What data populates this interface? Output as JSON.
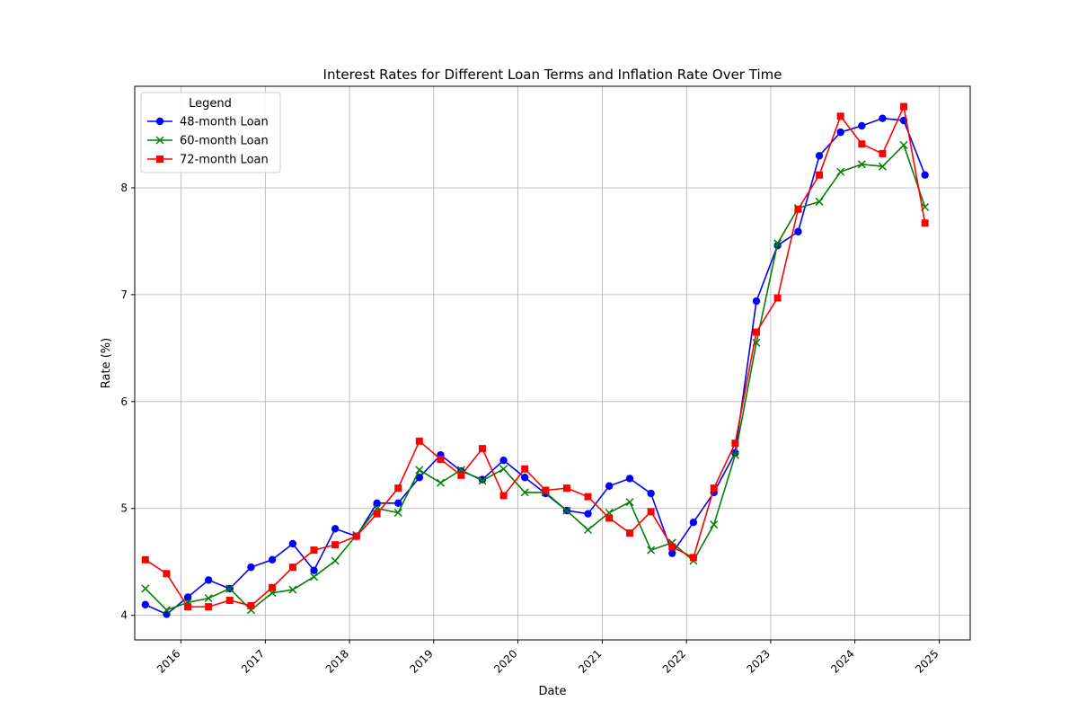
{
  "chart_data": {
    "type": "line",
    "title": "Interest Rates for Different Loan Terms and Inflation Rate Over Time",
    "xlabel": "Date",
    "ylabel": "Rate (%)",
    "x_ticks": [
      "2016",
      "2017",
      "2018",
      "2019",
      "2020",
      "2021",
      "2022",
      "2023",
      "2024",
      "2025"
    ],
    "y_ticks": [
      4,
      5,
      6,
      7,
      8
    ],
    "xlim": [
      "2015-06-15",
      "2025-05-15"
    ],
    "ylim": [
      3.77,
      8.95
    ],
    "grid": true,
    "legend": {
      "title": "Legend",
      "placement": "upper-left"
    },
    "x": [
      "2015-07-31",
      "2015-10-31",
      "2016-01-31",
      "2016-04-30",
      "2016-07-31",
      "2016-10-31",
      "2017-01-31",
      "2017-04-30",
      "2017-07-31",
      "2017-10-31",
      "2018-01-31",
      "2018-04-30",
      "2018-07-31",
      "2018-10-31",
      "2019-01-31",
      "2019-04-30",
      "2019-07-31",
      "2019-10-31",
      "2020-01-31",
      "2020-04-30",
      "2020-07-31",
      "2020-10-31",
      "2021-01-31",
      "2021-04-30",
      "2021-07-31",
      "2021-10-31",
      "2022-01-31",
      "2022-04-30",
      "2022-07-31",
      "2022-10-31",
      "2023-01-31",
      "2023-04-30",
      "2023-07-31",
      "2023-10-31",
      "2024-01-31",
      "2024-04-30",
      "2024-07-31",
      "2024-10-31"
    ],
    "series": [
      {
        "name": "48-month Loan",
        "color": "#0000ff",
        "marker": "circle",
        "values": [
          4.1,
          4.01,
          4.17,
          4.33,
          4.25,
          4.45,
          4.52,
          4.67,
          4.42,
          4.81,
          4.74,
          5.05,
          5.05,
          5.29,
          5.5,
          5.35,
          5.27,
          5.45,
          5.29,
          5.14,
          4.98,
          4.95,
          5.21,
          5.28,
          5.14,
          4.58,
          4.87,
          5.15,
          5.52,
          6.94,
          7.46,
          7.59,
          8.3,
          8.52,
          8.58,
          8.65,
          8.63,
          8.12
        ]
      },
      {
        "name": "60-month Loan",
        "color": "#008000",
        "marker": "x",
        "values": [
          4.25,
          4.05,
          4.12,
          4.16,
          4.25,
          4.05,
          4.21,
          4.24,
          4.36,
          4.51,
          4.75,
          5.0,
          4.96,
          5.36,
          5.24,
          5.36,
          5.26,
          5.37,
          5.15,
          5.15,
          4.98,
          4.8,
          4.96,
          5.06,
          4.61,
          4.68,
          4.51,
          4.85,
          5.5,
          6.55,
          7.48,
          7.81,
          7.87,
          8.15,
          8.22,
          8.2,
          8.4,
          7.82
        ]
      },
      {
        "name": "72-month Loan",
        "color": "#ff0000",
        "marker": "square",
        "values": [
          4.52,
          4.39,
          4.08,
          4.08,
          4.14,
          4.09,
          4.26,
          4.45,
          4.61,
          4.66,
          4.74,
          4.95,
          5.19,
          5.63,
          5.46,
          5.31,
          5.56,
          5.12,
          5.37,
          5.17,
          5.19,
          5.11,
          4.91,
          4.77,
          4.97,
          4.64,
          4.54,
          5.19,
          5.61,
          6.65,
          6.97,
          7.8,
          8.12,
          8.67,
          8.41,
          8.32,
          8.76,
          7.67
        ]
      }
    ]
  }
}
